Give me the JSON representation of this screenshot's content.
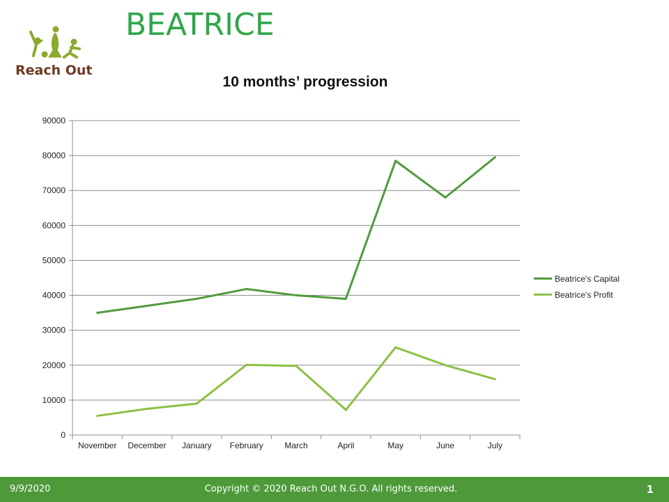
{
  "slide": {
    "title": "BEATRICE"
  },
  "logo": {
    "text": "Reach Out"
  },
  "footer": {
    "date": "9/9/2020",
    "copyright": "Copyright © 2020 Reach Out N.G.O. All  rights reserved.",
    "page_number": "1"
  },
  "chart_data": {
    "type": "line",
    "title": "10 months’ progression",
    "xlabel": "",
    "ylabel": "",
    "categories": [
      "November",
      "December",
      "January",
      "February",
      "March",
      "April",
      "May",
      "June",
      "July"
    ],
    "ylim": [
      0,
      90000
    ],
    "yticks": [
      "0",
      "10000",
      "20000",
      "30000",
      "40000",
      "50000",
      "60000",
      "70000",
      "80000",
      "90000"
    ],
    "grid": true,
    "legend_position": "right",
    "series": [
      {
        "name": "Beatrice's Capital",
        "color": "#4f9a3c",
        "values": [
          35000,
          37000,
          39000,
          41800,
          40000,
          39000,
          78500,
          68000,
          79500
        ]
      },
      {
        "name": "Beatrice's Profit",
        "color": "#8dbf45",
        "values": [
          5500,
          7500,
          9000,
          20100,
          19800,
          7200,
          25100,
          20000,
          16000
        ]
      }
    ]
  }
}
